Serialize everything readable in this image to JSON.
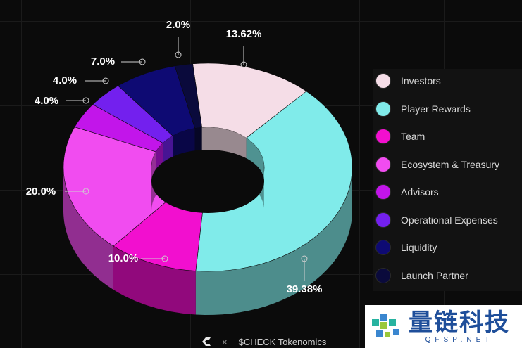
{
  "chart_data": {
    "type": "pie",
    "variant": "3d-donut",
    "title": "",
    "slices": [
      {
        "label": "Investors",
        "value": 13.62,
        "value_label": "13.62%",
        "color": "#f5dde7",
        "label_side": "top"
      },
      {
        "label": "Player Rewards",
        "value": 39.38,
        "value_label": "39.38%",
        "color": "#80ebea",
        "label_side": "bottom"
      },
      {
        "label": "Team",
        "value": 10.0,
        "value_label": "10.0%",
        "color": "#f20fcf",
        "label_side": "left"
      },
      {
        "label": "Ecosystem & Treasury",
        "value": 20.0,
        "value_label": "20.0%",
        "color": "#f14cf0",
        "label_side": "left"
      },
      {
        "label": "Advisors",
        "value": 4.0,
        "value_label": "4.0%",
        "color": "#c215ea",
        "label_side": "left"
      },
      {
        "label": "Operational Expenses",
        "value": 4.0,
        "value_label": "4.0%",
        "color": "#7320ee",
        "label_side": "left"
      },
      {
        "label": "Liquidity",
        "value": 7.0,
        "value_label": "7.0%",
        "color": "#0e0a73",
        "label_side": "left"
      },
      {
        "label": "Launch Partner",
        "value": 2.0,
        "value_label": "2.0%",
        "color": "#0a0a3c",
        "label_side": "top"
      }
    ],
    "legend_position": "right",
    "grid": true
  },
  "footer": {
    "times": "×",
    "title": "$CHECK Tokenomics"
  },
  "watermark": {
    "chinese": "量链科技",
    "latin": "QFSP.NET"
  }
}
